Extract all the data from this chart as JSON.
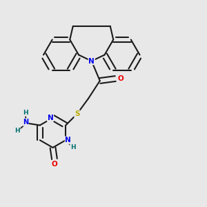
{
  "bg_color": "#e8e8e8",
  "bond_color": "#1a1a1a",
  "N_color": "#0000ee",
  "O_color": "#ee0000",
  "S_color": "#bbaa00",
  "H_color": "#007070",
  "lw": 1.5,
  "dbo": 0.013,
  "fig_w": 3.0,
  "fig_h": 3.0,
  "dpi": 100,
  "xlim": [
    0,
    1
  ],
  "ylim": [
    0,
    1
  ]
}
